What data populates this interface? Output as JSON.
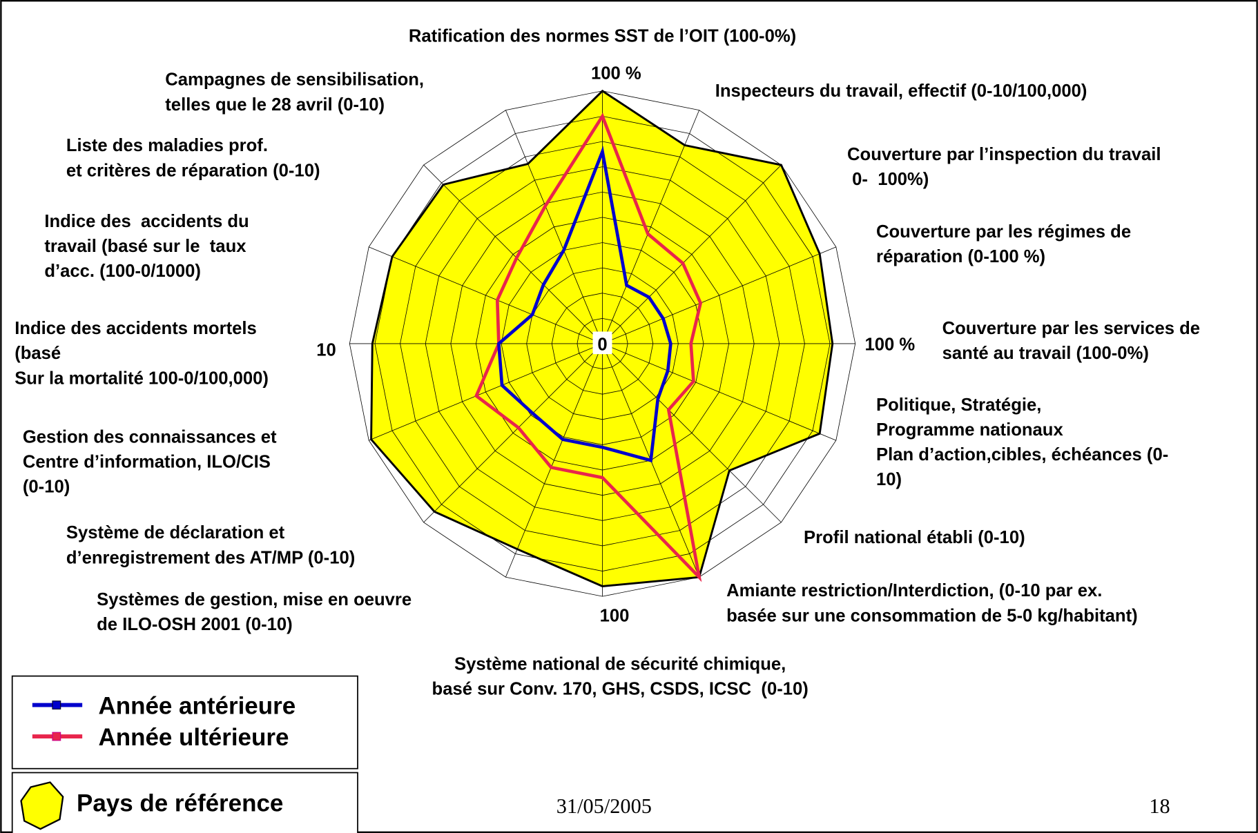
{
  "chart_data": {
    "type": "radar",
    "categories": [
      [
        "Ratification des normes SST de l’OIT (100-0%)"
      ],
      [
        "Inspecteurs du travail, effectif (0-10/100,000)"
      ],
      [
        "Couverture par l’inspection du travail",
        " 0-  100%)"
      ],
      [
        "Couverture par les régimes de",
        "réparation (0-100 %)"
      ],
      [
        "Couverture par les services de",
        "santé au travail (100-0%)"
      ],
      [
        "Politique, Stratégie,",
        "Programme nationaux",
        "Plan d’action,cibles, échéances (0-",
        "10)"
      ],
      [
        "Profil national établi (0-10)"
      ],
      [
        "Amiante restriction/Interdiction, (0-10 par ex.",
        "basée sur une consommation de 5-0 kg/habitant)"
      ],
      [
        "Système national de sécurité chimique,",
        "basé sur Conv. 170, GHS, CSDS, ICSC  (0-10)"
      ],
      [
        "Systèmes de gestion, mise en oeuvre",
        "de ILO-OSH 2001 (0-10)"
      ],
      [
        "Système de déclaration et",
        "d’enregistrement des AT/MP (0-10)"
      ],
      [
        "Gestion des connaissances et",
        "Centre d’information, ILO/CIS",
        "(0-10)"
      ],
      [
        "Indice des accidents mortels",
        "(basé",
        "Sur la mortalité 100-0/100,000)"
      ],
      [
        "Indice des  accidents du",
        "travail (basé sur le  taux",
        "d’acc. (100-0/1000)"
      ],
      [
        "Liste des maladies prof.",
        "et critères de réparation (0-10)"
      ],
      [
        "Campagnes de sensibilisation,",
        "telles que le 28 avril (0-10)"
      ]
    ],
    "series": [
      {
        "name": "Pays de référence",
        "color": "#ffff00",
        "values": [
          100,
          85,
          100,
          93,
          91,
          93,
          71,
          100,
          96,
          88,
          94,
          99,
          91,
          90,
          89,
          77
        ]
      },
      {
        "name": "Année ultérieure",
        "color": "#e8254c",
        "values": [
          90,
          47,
          45,
          42,
          35,
          39,
          37,
          100,
          53,
          53,
          47,
          54,
          41,
          45,
          48,
          59
        ]
      },
      {
        "name": "Année antérieure",
        "color": "#0000cc",
        "values": [
          76,
          25,
          26,
          26,
          27,
          28,
          31,
          50,
          41,
          41,
          39,
          43,
          41,
          30,
          33,
          40
        ]
      }
    ],
    "rlim": [
      0,
      100
    ],
    "rticks": [
      10,
      20,
      30,
      40,
      50,
      60,
      70,
      80,
      90,
      100
    ],
    "scale_labels": [
      "0",
      "100 %",
      "100 %",
      "100",
      "10"
    ],
    "date": "31/05/2005",
    "page_number": "18"
  }
}
